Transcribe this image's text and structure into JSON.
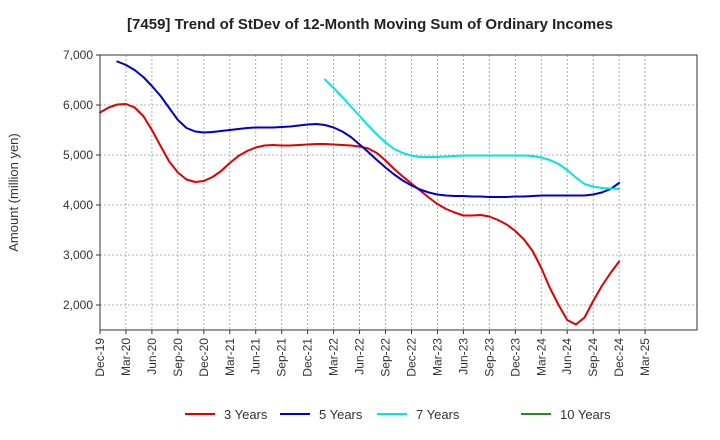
{
  "chart_data": {
    "type": "line",
    "title": "[7459]  Trend of StDev of 12-Month Moving Sum of Ordinary Incomes",
    "xlabel": "",
    "ylabel": "Amount (million yen)",
    "ylim": [
      1500,
      7000
    ],
    "yticks": [
      2000,
      3000,
      4000,
      5000,
      6000,
      7000
    ],
    "ytick_labels": [
      "2,000",
      "3,000",
      "4,000",
      "5,000",
      "6,000",
      "7,000"
    ],
    "xlim": [
      0,
      69
    ],
    "x_tick_labels": [
      "Dec-19",
      "Mar-20",
      "Jun-20",
      "Sep-20",
      "Dec-20",
      "Mar-21",
      "Jun-21",
      "Sep-21",
      "Dec-21",
      "Mar-22",
      "Jun-22",
      "Sep-22",
      "Dec-22",
      "Mar-23",
      "Jun-23",
      "Sep-23",
      "Dec-23",
      "Mar-24",
      "Jun-24",
      "Sep-24",
      "Dec-24",
      "Mar-25"
    ],
    "x_tick_positions": [
      0,
      3,
      6,
      9,
      12,
      15,
      18,
      21,
      24,
      27,
      30,
      33,
      36,
      39,
      42,
      45,
      48,
      51,
      54,
      57,
      60,
      63
    ],
    "x_unit": "months since Dec-19",
    "grid": true,
    "legend_position": "bottom",
    "series": [
      {
        "name": "3 Years",
        "color": "#e00000",
        "x": [
          0,
          1,
          2,
          3,
          4,
          5,
          6,
          7,
          8,
          9,
          10,
          11,
          12,
          13,
          14,
          15,
          16,
          17,
          18,
          19,
          20,
          21,
          22,
          23,
          24,
          25,
          26,
          27,
          28,
          29,
          30,
          31,
          32,
          33,
          34,
          35,
          36,
          37,
          38,
          39,
          40,
          41,
          42,
          43,
          44,
          45,
          46,
          47,
          48,
          49,
          50,
          51,
          52,
          53,
          54,
          55,
          56,
          57,
          58,
          59,
          60
        ],
        "values": [
          5850,
          5950,
          6010,
          6020,
          5950,
          5780,
          5500,
          5180,
          4870,
          4650,
          4510,
          4460,
          4480,
          4560,
          4680,
          4840,
          4980,
          5080,
          5150,
          5190,
          5200,
          5190,
          5190,
          5200,
          5210,
          5220,
          5220,
          5210,
          5200,
          5190,
          5170,
          5130,
          5040,
          4890,
          4720,
          4570,
          4430,
          4290,
          4150,
          4020,
          3920,
          3850,
          3790,
          3790,
          3800,
          3770,
          3700,
          3610,
          3480,
          3310,
          3080,
          2740,
          2340,
          2000,
          1700,
          1610,
          1750,
          2080,
          2380,
          2640,
          2870
        ]
      },
      {
        "name": "5 Years",
        "color": "#0000cc",
        "x": [
          2,
          3,
          4,
          5,
          6,
          7,
          8,
          9,
          10,
          11,
          12,
          13,
          14,
          15,
          16,
          17,
          18,
          19,
          20,
          21,
          22,
          23,
          24,
          25,
          26,
          27,
          28,
          29,
          30,
          31,
          32,
          33,
          34,
          35,
          36,
          37,
          38,
          39,
          40,
          41,
          42,
          43,
          44,
          45,
          46,
          47,
          48,
          49,
          50,
          51,
          52,
          53,
          54,
          55,
          56,
          57,
          58,
          59,
          60
        ],
        "values": [
          6870,
          6800,
          6700,
          6560,
          6380,
          6180,
          5940,
          5700,
          5540,
          5470,
          5450,
          5460,
          5480,
          5500,
          5520,
          5540,
          5550,
          5550,
          5550,
          5560,
          5570,
          5590,
          5610,
          5620,
          5600,
          5550,
          5470,
          5360,
          5210,
          5060,
          4900,
          4750,
          4610,
          4490,
          4390,
          4310,
          4250,
          4210,
          4190,
          4180,
          4180,
          4170,
          4170,
          4160,
          4160,
          4160,
          4170,
          4170,
          4180,
          4190,
          4190,
          4190,
          4190,
          4190,
          4190,
          4210,
          4250,
          4320,
          4440
        ]
      },
      {
        "name": "7 Years",
        "color": "#00e5e5",
        "x": [
          26,
          27,
          28,
          29,
          30,
          31,
          32,
          33,
          34,
          35,
          36,
          37,
          38,
          39,
          40,
          41,
          42,
          43,
          44,
          45,
          46,
          47,
          48,
          49,
          50,
          51,
          52,
          53,
          54,
          55,
          56,
          57,
          58,
          59,
          60
        ],
        "values": [
          6510,
          6340,
          6160,
          5970,
          5780,
          5590,
          5410,
          5250,
          5120,
          5040,
          4990,
          4960,
          4960,
          4960,
          4970,
          4980,
          4990,
          4990,
          4990,
          4990,
          4990,
          4990,
          4990,
          4990,
          4980,
          4950,
          4900,
          4820,
          4700,
          4550,
          4420,
          4370,
          4340,
          4330,
          4320
        ]
      },
      {
        "name": "10 Years",
        "color": "#228b22",
        "x": [],
        "values": []
      }
    ]
  }
}
